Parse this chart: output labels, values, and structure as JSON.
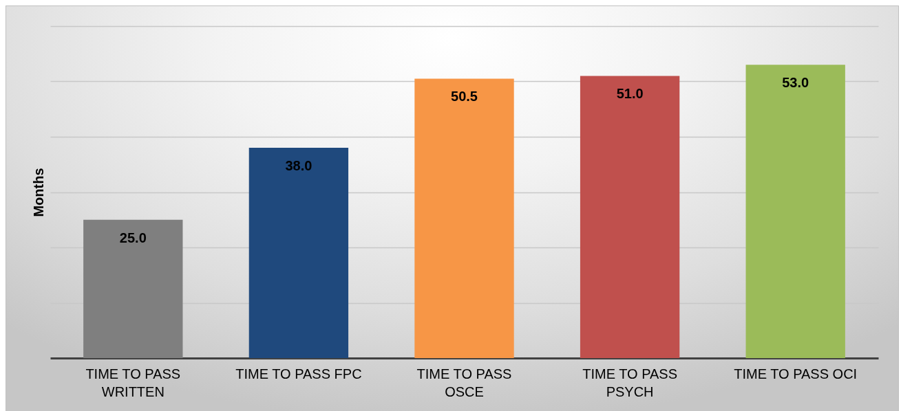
{
  "chart_data": {
    "type": "bar",
    "ylabel": "Months",
    "categories": [
      "TIME TO PASS WRITTEN",
      "TIME TO PASS FPC",
      "TIME TO PASS OSCE",
      "TIME TO PASS PSYCH",
      "TIME TO PASS OCI"
    ],
    "values": [
      25.0,
      38.0,
      50.5,
      51.0,
      53.0
    ],
    "value_labels": [
      "25.0",
      "38.0",
      "50.5",
      "51.0",
      "53.0"
    ],
    "colors": [
      "#7f7f7f",
      "#1f497d",
      "#f79646",
      "#c0504d",
      "#9bbb59"
    ],
    "ylim": [
      0,
      60
    ],
    "yticks": [
      {
        "value": 0,
        "label": null
      },
      {
        "value": 10,
        "label": null
      },
      {
        "value": 20,
        "label": null
      },
      {
        "value": 30,
        "label": null
      },
      {
        "value": 40,
        "label": null
      },
      {
        "value": 50,
        "label": null
      },
      {
        "value": 60,
        "label": null
      }
    ],
    "grid": "y",
    "tick_labels": "x"
  }
}
